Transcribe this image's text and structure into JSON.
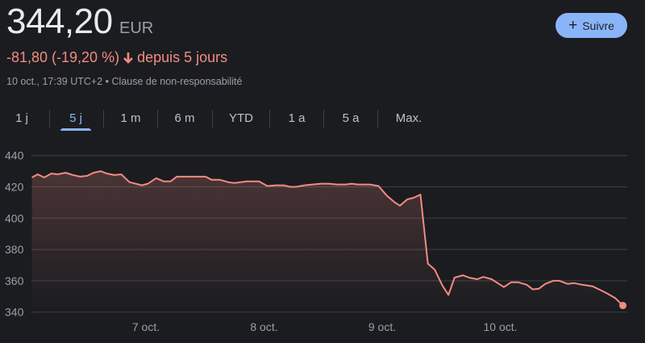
{
  "quote": {
    "price": "344,20",
    "currency": "EUR",
    "change": "-81,80 (-19,20 %)",
    "change_direction_icon": "arrow-down-icon",
    "change_period": "depuis 5 jours",
    "timestamp": "10 oct., 17:39 UTC+2",
    "separator": "•",
    "disclaimer": "Clause de non-responsabilité"
  },
  "follow_button": {
    "label": "Suivre",
    "icon": "plus-icon"
  },
  "tabs": [
    {
      "label": "1 j",
      "active": false
    },
    {
      "label": "5 j",
      "active": true
    },
    {
      "label": "1 m",
      "active": false
    },
    {
      "label": "6 m",
      "active": false
    },
    {
      "label": "YTD",
      "active": false
    },
    {
      "label": "1 a",
      "active": false
    },
    {
      "label": "5 a",
      "active": false
    },
    {
      "label": "Max.",
      "active": false
    }
  ],
  "colors": {
    "line": "#f28b82",
    "accent": "#8ab4f8",
    "background": "#1b1c20"
  },
  "chart_data": {
    "type": "area",
    "title": "",
    "xlabel": "",
    "ylabel": "",
    "ylim": [
      340,
      440
    ],
    "yticks": [
      "440",
      "420",
      "400",
      "380",
      "360",
      "340"
    ],
    "xticks": [
      {
        "value": 7,
        "label": "7 oct."
      },
      {
        "value": 8,
        "label": "8 oct."
      },
      {
        "value": 9,
        "label": "9 oct."
      },
      {
        "value": 10,
        "label": "10 oct."
      }
    ],
    "grid": true,
    "series": [
      {
        "points": [
          [
            6.035,
            426
          ],
          [
            6.084,
            428
          ],
          [
            6.139,
            426
          ],
          [
            6.199,
            428.5
          ],
          [
            6.251,
            428
          ],
          [
            6.321,
            429
          ],
          [
            6.383,
            427.5
          ],
          [
            6.443,
            426.5
          ],
          [
            6.502,
            427
          ],
          [
            6.557,
            429
          ],
          [
            6.617,
            430
          ],
          [
            6.669,
            428.5
          ],
          [
            6.732,
            427.5
          ],
          [
            6.791,
            428
          ],
          [
            6.861,
            423
          ],
          [
            6.913,
            422
          ],
          [
            6.965,
            421
          ],
          [
            7.017,
            422
          ],
          [
            7.087,
            425.5
          ],
          [
            7.15,
            423.5
          ],
          [
            7.209,
            423.5
          ],
          [
            7.261,
            426.5
          ],
          [
            7.366,
            426.5
          ],
          [
            7.505,
            426.5
          ],
          [
            7.557,
            424.5
          ],
          [
            7.627,
            424.5
          ],
          [
            7.697,
            423
          ],
          [
            7.749,
            422.5
          ],
          [
            7.801,
            423
          ],
          [
            7.854,
            423.5
          ],
          [
            7.958,
            423.5
          ],
          [
            8.028,
            420.5
          ],
          [
            8.098,
            421
          ],
          [
            8.167,
            421
          ],
          [
            8.22,
            420
          ],
          [
            8.272,
            420
          ],
          [
            8.341,
            421
          ],
          [
            8.411,
            421.5
          ],
          [
            8.481,
            422
          ],
          [
            8.551,
            422
          ],
          [
            8.62,
            421.5
          ],
          [
            8.69,
            421.5
          ],
          [
            8.742,
            422
          ],
          [
            8.794,
            421.5
          ],
          [
            8.899,
            421.5
          ],
          [
            8.969,
            420.5
          ],
          [
            9.038,
            414.5
          ],
          [
            9.108,
            410
          ],
          [
            9.15,
            408
          ],
          [
            9.213,
            412
          ],
          [
            9.265,
            413
          ],
          [
            9.324,
            415
          ],
          [
            9.387,
            371
          ],
          [
            9.446,
            367
          ],
          [
            9.509,
            357
          ],
          [
            9.561,
            351
          ],
          [
            9.613,
            362
          ],
          [
            9.683,
            363.5
          ],
          [
            9.735,
            362
          ],
          [
            9.805,
            361
          ],
          [
            9.857,
            362.5
          ],
          [
            9.927,
            361
          ],
          [
            9.979,
            358.5
          ],
          [
            10.031,
            356
          ],
          [
            10.091,
            359
          ],
          [
            10.153,
            359
          ],
          [
            10.223,
            357.5
          ],
          [
            10.275,
            354.5
          ],
          [
            10.328,
            355
          ],
          [
            10.38,
            358
          ],
          [
            10.449,
            360
          ],
          [
            10.502,
            360
          ],
          [
            10.571,
            358
          ],
          [
            10.624,
            358.5
          ],
          [
            10.693,
            357.5
          ],
          [
            10.78,
            356.5
          ],
          [
            10.85,
            354
          ],
          [
            10.902,
            352
          ],
          [
            10.972,
            349
          ],
          [
            11.038,
            344.2
          ]
        ]
      }
    ]
  }
}
